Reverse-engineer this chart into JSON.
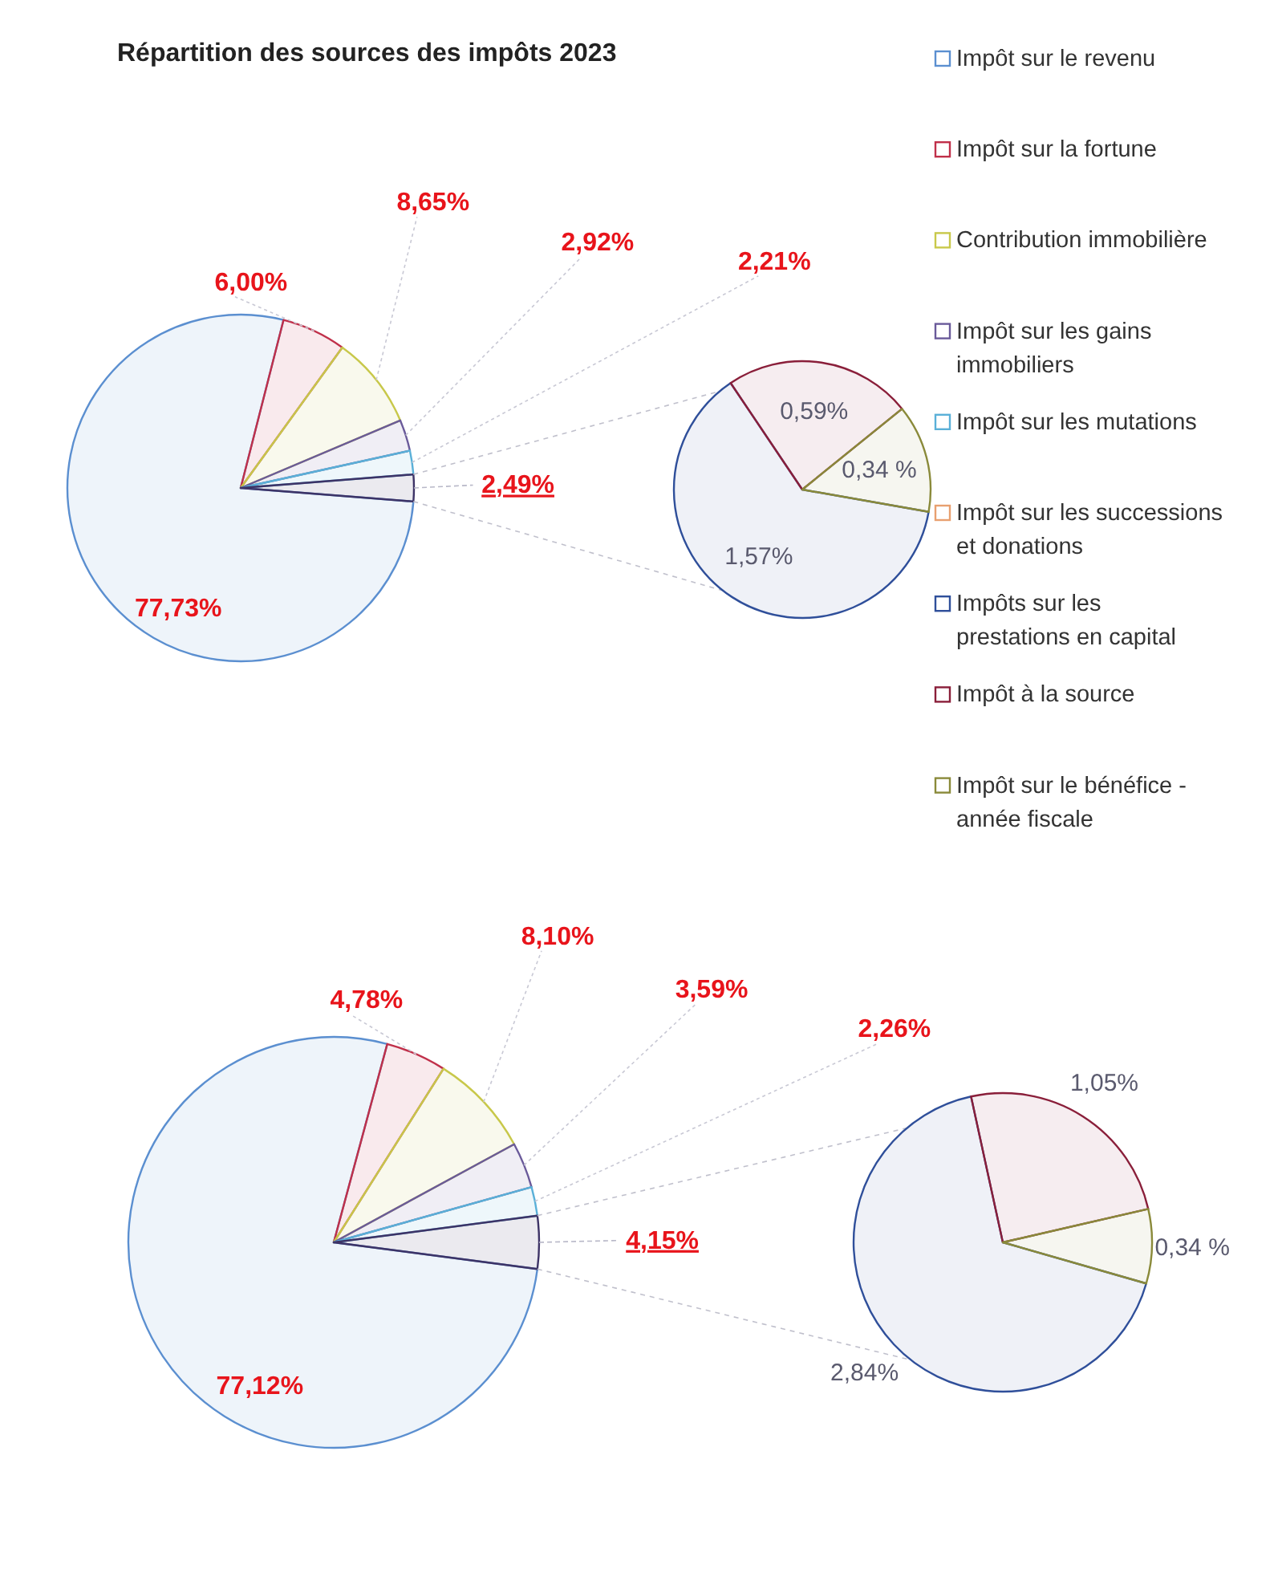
{
  "chart_data": [
    {
      "type": "pie",
      "title": "Répartition des sources des impôts 2023",
      "categories": [
        "Impôt sur le revenu",
        "Impôt sur la fortune",
        "Contribution immobilière",
        "Impôt sur les gains immobiliers",
        "Impôt sur les mutations",
        null
      ],
      "values": [
        77.73,
        6.0,
        8.65,
        2.92,
        2.21,
        2.49
      ],
      "colors": [
        "#5b8fd0",
        "#c0304a",
        "#c8c84a",
        "#6a5a9a",
        "#5ab0d8",
        "#3d3366"
      ],
      "value_labels": [
        "77,73%",
        "6,00%",
        "8,65%",
        "2,92%",
        "2,21%",
        "2,49%"
      ],
      "legend": "right"
    },
    {
      "type": "pie",
      "categories": [
        "Impôt sur les successions et donations",
        "Impôts sur les prestations en capital",
        "Impôt à la source",
        "Impôt sur le bénéfice - année fiscale"
      ],
      "values": [
        null,
        1.57,
        0.59,
        0.34
      ],
      "colors": [
        "#e8a070",
        "#2f4f9a",
        "#8a1f3a",
        "#8a8a3a"
      ],
      "value_labels": [
        null,
        "1,57%",
        "0,59%",
        "0,34 %"
      ],
      "legend": "right"
    },
    {
      "type": "pie",
      "categories": [
        null,
        null,
        null,
        null,
        null,
        null
      ],
      "values": [
        77.12,
        4.78,
        8.1,
        3.59,
        2.26,
        4.15
      ],
      "colors": [
        "#5b8fd0",
        "#c0304a",
        "#c8c84a",
        "#6a5a9a",
        "#5ab0d8",
        "#3d3366"
      ],
      "value_labels": [
        "77,12%",
        "4,78%",
        "8,10%",
        "3,59%",
        "2,26%",
        "4,15%"
      ]
    },
    {
      "type": "pie",
      "categories": [
        null,
        null,
        null
      ],
      "values": [
        2.84,
        1.05,
        0.34
      ],
      "colors": [
        "#2f4f9a",
        "#8a1f3a",
        "#8a8a3a"
      ],
      "value_labels": [
        "2,84%",
        "1,05%",
        "0,34 %"
      ]
    }
  ]
}
